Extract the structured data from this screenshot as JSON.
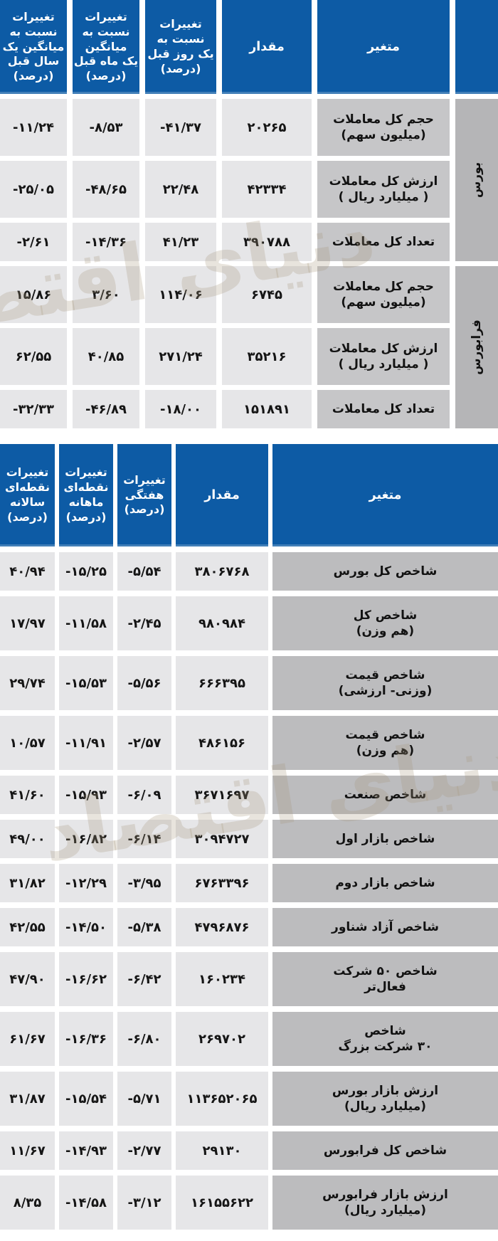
{
  "colors": {
    "header_blue": "#0d5ba5",
    "data_cell_gray": "#e6e6e8",
    "label_cell_gray_table1": "#c6c6c8",
    "label_cell_gray_table2": "#bcbcbe",
    "group_cell_gray": "#b5b5b7",
    "header_text": "#ffffff",
    "body_text": "#151515"
  },
  "watermark": {
    "text": "دنیای اقتصاد"
  },
  "market_table": {
    "headers": {
      "variable": "متغیر",
      "value": "مقدار",
      "day_change": "تغییرات\nنسبت به\nیک روز قبل\n(درصد)",
      "month_change": "تغییرات\nنسبت به\nمیانگین\nیک ماه قبل\n(درصد)",
      "year_change": "تغییرات\nنسبت به\nمیانگین یک\nسال قبل\n(درصد)"
    },
    "groups": [
      {
        "label": "بورس",
        "rows": [
          {
            "variable": "حجم کل معاملات\n(میلیون سهم)",
            "value": "۲۰۲۶۵",
            "day": "-۴۱/۳۷",
            "month": "-۸/۵۳",
            "year": "-۱۱/۲۴"
          },
          {
            "variable": "ارزش کل معاملات\n( میلیارد ریال )",
            "value": "۴۲۳۳۴",
            "day": "۲۲/۴۸",
            "month": "-۴۸/۶۵",
            "year": "-۲۵/۰۵"
          },
          {
            "variable": "تعداد کل معاملات",
            "value": "۳۹۰۷۸۸",
            "day": "۴۱/۲۳",
            "month": "-۱۴/۳۶",
            "year": "-۲/۶۱"
          }
        ]
      },
      {
        "label": "فرابورس",
        "rows": [
          {
            "variable": "حجم کل معاملات\n(میلیون سهم)",
            "value": "۶۷۴۵",
            "day": "۱۱۴/۰۶",
            "month": "۳/۶۰",
            "year": "۱۵/۸۶"
          },
          {
            "variable": "ارزش کل معاملات\n( میلیارد ریال )",
            "value": "۳۵۲۱۶",
            "day": "۲۷۱/۲۴",
            "month": "۴۰/۸۵",
            "year": "۶۲/۵۵"
          },
          {
            "variable": "تعداد کل معاملات",
            "value": "۱۵۱۸۹۱",
            "day": "-۱۸/۰۰",
            "month": "-۴۶/۸۹",
            "year": "-۳۲/۳۳"
          }
        ]
      }
    ]
  },
  "index_table": {
    "headers": {
      "variable": "متغیر",
      "value": "مقدار",
      "weekly_change": "تغییرات\nهفتگی\n(درصد)",
      "monthly_change": "تغییرات\nنقطه‌ای\nماهانه\n(درصد)",
      "annual_change": "تغییرات\nنقطه‌ای\nسالانه\n(درصد)"
    },
    "rows": [
      {
        "variable": "شاخص کل بورس",
        "value": "۳۸۰۶۷۶۸",
        "weekly": "-۵/۵۴",
        "monthly": "-۱۵/۲۵",
        "annual": "۴۰/۹۴"
      },
      {
        "variable": "شاخص کل\n(هم وزن)",
        "value": "۹۸۰۹۸۴",
        "weekly": "-۲/۴۵",
        "monthly": "-۱۱/۵۸",
        "annual": "۱۷/۹۷"
      },
      {
        "variable": "شاخص قیمت\n(وزنی- ارزشی)",
        "value": "۶۶۶۳۹۵",
        "weekly": "-۵/۵۶",
        "monthly": "-۱۵/۵۳",
        "annual": "۲۹/۷۴"
      },
      {
        "variable": "شاخص قیمت\n(هم وزن)",
        "value": "۴۸۶۱۵۶",
        "weekly": "-۲/۵۷",
        "monthly": "-۱۱/۹۱",
        "annual": "۱۰/۵۷"
      },
      {
        "variable": "شاخص صنعت",
        "value": "۳۶۷۱۶۹۷",
        "weekly": "-۶/۰۹",
        "monthly": "-۱۵/۹۳",
        "annual": "۴۱/۶۰"
      },
      {
        "variable": "شاخص بازار اول",
        "value": "۳۰۹۴۷۲۷",
        "weekly": "-۶/۱۴",
        "monthly": "-۱۶/۸۲",
        "annual": "۴۹/۰۰"
      },
      {
        "variable": "شاخص بازار دوم",
        "value": "۶۷۶۳۳۹۶",
        "weekly": "-۳/۹۵",
        "monthly": "-۱۲/۲۹",
        "annual": "۳۱/۸۲"
      },
      {
        "variable": "شاخص آزاد شناور",
        "value": "۴۷۹۶۸۷۶",
        "weekly": "-۵/۳۸",
        "monthly": "-۱۴/۵۰",
        "annual": "۴۲/۵۵"
      },
      {
        "variable": "شاخص ۵۰ شرکت\nفعال‌تر",
        "value": "۱۶۰۲۳۴",
        "weekly": "-۶/۴۲",
        "monthly": "-۱۶/۶۲",
        "annual": "۴۷/۹۰"
      },
      {
        "variable": "شاخص\n۳۰ شرکت بزرگ",
        "value": "۲۶۹۷۰۲",
        "weekly": "-۶/۸۰",
        "monthly": "-۱۶/۳۶",
        "annual": "۶۱/۶۷"
      },
      {
        "variable": "ارزش بازار بورس\n(میلیارد ریال)",
        "value": "۱۱۳۶۵۲۰۶۵",
        "weekly": "-۵/۷۱",
        "monthly": "-۱۵/۵۴",
        "annual": "۳۱/۸۷"
      },
      {
        "variable": "شاخص کل فرابورس",
        "value": "۲۹۱۳۰",
        "weekly": "-۲/۷۷",
        "monthly": "-۱۴/۹۳",
        "annual": "۱۱/۶۷"
      },
      {
        "variable": "ارزش بازار فرابورس\n(میلیارد ریال)",
        "value": "۱۶۱۵۵۶۲۲",
        "weekly": "-۳/۱۲",
        "monthly": "-۱۴/۵۸",
        "annual": "۸/۳۵"
      }
    ]
  }
}
